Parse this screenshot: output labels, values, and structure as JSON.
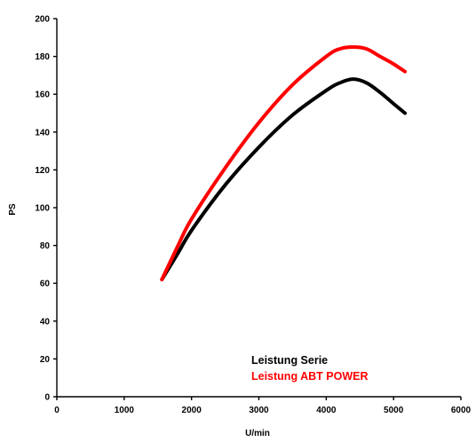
{
  "chart_data": {
    "type": "line",
    "xlabel": "U/min",
    "ylabel": "PS",
    "xlim": [
      0,
      6000
    ],
    "ylim": [
      0,
      200
    ],
    "x_ticks": [
      0,
      1000,
      2000,
      3000,
      4000,
      5000,
      6000
    ],
    "y_ticks": [
      0,
      20,
      40,
      60,
      80,
      100,
      120,
      140,
      160,
      180,
      200
    ],
    "grid": false,
    "legend_position": "bottom-right",
    "series": [
      {
        "name": "Leistung Serie",
        "color": "#000000",
        "x": [
          1560,
          1800,
          2000,
          2500,
          3000,
          3500,
          4000,
          4200,
          4400,
          4600,
          4800,
          5000,
          5170
        ],
        "y": [
          62,
          76,
          88,
          112,
          132,
          149,
          162,
          166,
          168,
          166,
          161,
          155,
          150
        ]
      },
      {
        "name": "Leistung ABT POWER",
        "color": "#ff0000",
        "x": [
          1560,
          1800,
          2000,
          2500,
          3000,
          3500,
          4000,
          4200,
          4400,
          4600,
          4800,
          5000,
          5170
        ],
        "y": [
          62,
          80,
          94,
          121,
          145,
          165,
          180,
          184,
          185,
          184,
          180,
          176,
          172
        ]
      }
    ]
  }
}
